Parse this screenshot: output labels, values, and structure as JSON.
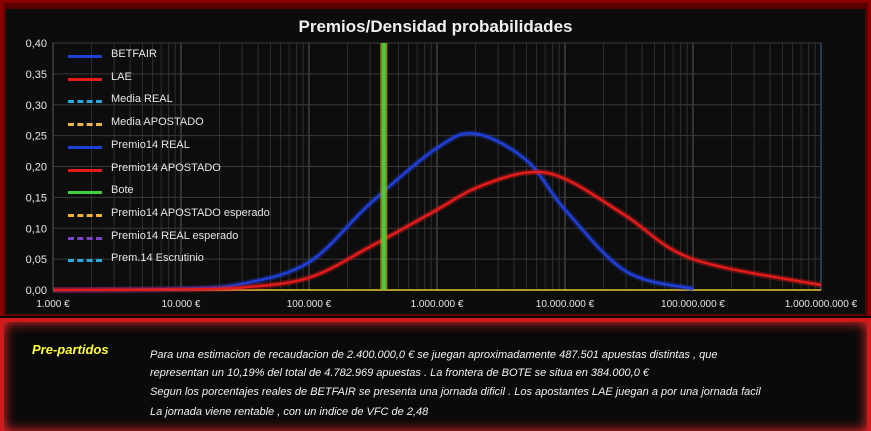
{
  "chart_data": {
    "type": "line",
    "title": "Premios/Densidad probabilidades",
    "x_scale": "log",
    "xlim": [
      1000,
      1000000000
    ],
    "ylim": [
      0,
      0.4
    ],
    "x_tick_labels": [
      "1.000 €",
      "10.000 €",
      "100.000 €",
      "1.000.000 €",
      "10.000.000 €",
      "100.000.000 €",
      "1.000.000.000 €"
    ],
    "y_tick_labels": [
      "0,00",
      "0,05",
      "0,10",
      "0,15",
      "0,20",
      "0,25",
      "0,30",
      "0,35",
      "0,40"
    ],
    "legend": [
      {
        "name": "BETFAIR",
        "color": "#1f3fd6",
        "dash": "solid"
      },
      {
        "name": "LAE",
        "color": "#e31b1b",
        "dash": "solid"
      },
      {
        "name": "Media REAL",
        "color": "#2aa8e0",
        "dash": "dashed"
      },
      {
        "name": "Media APOSTADO",
        "color": "#e8b84a",
        "dash": "dashed"
      },
      {
        "name": "Premio14 REAL",
        "color": "#1f3fd6",
        "dash": "solid"
      },
      {
        "name": "Premio14 APOSTADO",
        "color": "#e31b1b",
        "dash": "solid"
      },
      {
        "name": "Bote",
        "color": "#3fd13f",
        "dash": "solid"
      },
      {
        "name": "Premio14 APOSTADO esperado",
        "color": "#f0b030",
        "dash": "dashed"
      },
      {
        "name": "Premio14 REAL esperado",
        "color": "#7a44c8",
        "dash": "dashed"
      },
      {
        "name": "Prem.14 Escrutinio",
        "color": "#2aa8e0",
        "dash": "dashed"
      }
    ],
    "series": [
      {
        "name": "BETFAIR",
        "x": [
          1000,
          10000,
          30000,
          100000,
          300000,
          1000000,
          2000000,
          5000000,
          10000000,
          30000000,
          100000000
        ],
        "y": [
          0.0,
          0.002,
          0.01,
          0.045,
          0.14,
          0.23,
          0.253,
          0.21,
          0.13,
          0.03,
          0.002
        ]
      },
      {
        "name": "LAE",
        "x": [
          1000,
          10000,
          30000,
          100000,
          300000,
          1000000,
          2000000,
          5000000,
          10000000,
          30000000,
          100000000,
          1000000000
        ],
        "y": [
          0.0,
          0.001,
          0.004,
          0.02,
          0.07,
          0.13,
          0.165,
          0.19,
          0.18,
          0.12,
          0.05,
          0.008
        ]
      },
      {
        "name": "Bote",
        "x": [
          384000,
          384000
        ],
        "y": [
          0,
          0.4
        ]
      }
    ],
    "grid": true
  },
  "panel": {
    "title": "Pre-partidos",
    "line1": "Para una estimacion de recaudacion de  2.400.000,0 €  se juegan aproximadamente 487.501 apuestas distintas , que",
    "line2": "representan un  10,19%  del total de 4.782.969 apuestas . La frontera de BOTE se situa en  384.000,0 €",
    "line3": "Segun los porcentajes reales de BETFAIR se presenta una jornada dificil . Los apostantes LAE juegan a por una jornada facil",
    "line4": "La jornada viene  rentable , con un indice de VFC de 2,48"
  }
}
